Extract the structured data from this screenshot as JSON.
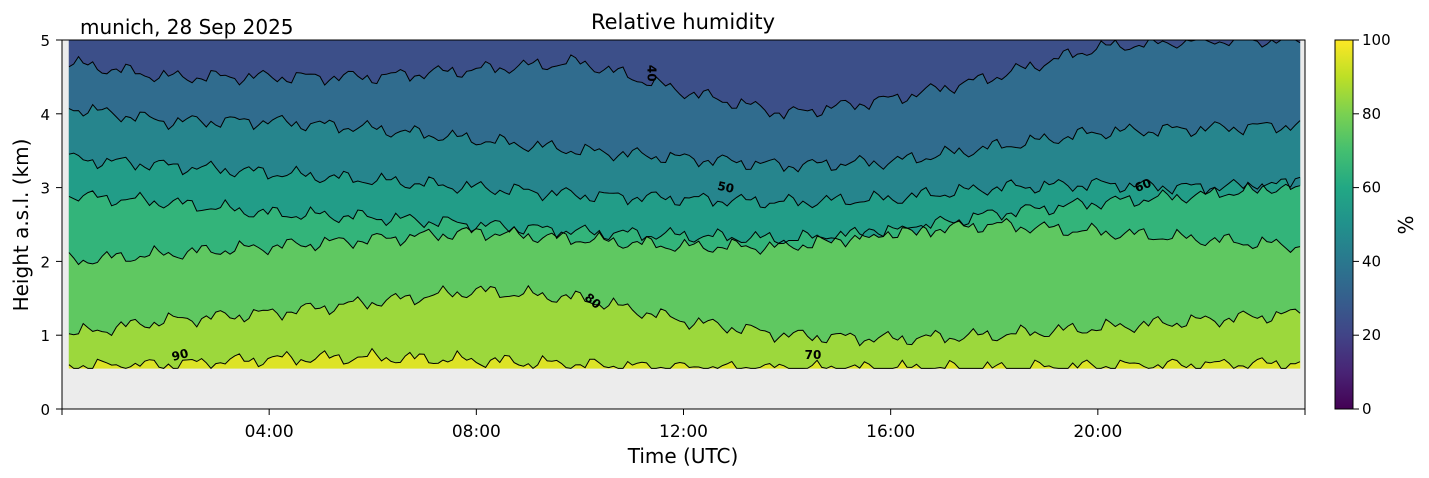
{
  "chart_data": {
    "type": "heatmap",
    "title": "Relative humidity",
    "location_label": "munich, 28 Sep 2025",
    "xlabel": "Time (UTC)",
    "ylabel": "Height a.s.l. (km)",
    "xlim_hours": [
      0,
      24
    ],
    "ylim_km": [
      0,
      5
    ],
    "x_ticks": [
      {
        "hour": 4,
        "label": "04:00"
      },
      {
        "hour": 8,
        "label": "08:00"
      },
      {
        "hour": 12,
        "label": "12:00"
      },
      {
        "hour": 16,
        "label": "16:00"
      },
      {
        "hour": 20,
        "label": "20:00"
      }
    ],
    "y_ticks": [
      {
        "value": 0,
        "label": "0"
      },
      {
        "value": 1,
        "label": "1"
      },
      {
        "value": 2,
        "label": "2"
      },
      {
        "value": 3,
        "label": "3"
      },
      {
        "value": 4,
        "label": "4"
      },
      {
        "value": 5,
        "label": "5"
      }
    ],
    "data_floor_km": 0.55,
    "colormap": "viridis",
    "colorbar": {
      "label": "%",
      "range": [
        0,
        100
      ],
      "ticks": [
        {
          "value": 0,
          "label": "0"
        },
        {
          "value": 20,
          "label": "20"
        },
        {
          "value": 40,
          "label": "40"
        },
        {
          "value": 60,
          "label": "60"
        },
        {
          "value": 80,
          "label": "80"
        },
        {
          "value": 100,
          "label": "100"
        }
      ]
    },
    "contour_levels": [
      30,
      40,
      50,
      60,
      70,
      80,
      90
    ],
    "contour_labels": [
      {
        "text": "90",
        "hour": 2.3,
        "km": 0.68,
        "rotate": -15
      },
      {
        "text": "80",
        "hour": 10.2,
        "km": 1.42,
        "rotate": 38
      },
      {
        "text": "70",
        "hour": 14.5,
        "km": 0.68,
        "rotate": 0
      },
      {
        "text": "50",
        "hour": 12.8,
        "km": 2.95,
        "rotate": 12
      },
      {
        "text": "60",
        "hour": 20.9,
        "km": 2.98,
        "rotate": -22
      },
      {
        "text": "40",
        "hour": 11.3,
        "km": 4.55,
        "rotate": 90
      }
    ],
    "hours": [
      0,
      2,
      4,
      6,
      8,
      10,
      12,
      14,
      16,
      18,
      20,
      22,
      24
    ],
    "isoline_heights_km": {
      "90": [
        0.58,
        0.6,
        0.68,
        0.7,
        0.66,
        0.6,
        0.56,
        0.55,
        0.55,
        0.55,
        0.58,
        0.6,
        0.62
      ],
      "80": [
        1.0,
        1.2,
        1.3,
        1.45,
        1.6,
        1.5,
        1.2,
        1.0,
        0.95,
        1.0,
        1.1,
        1.2,
        1.3
      ],
      "70": [
        2.0,
        2.1,
        2.2,
        2.3,
        2.4,
        2.3,
        2.2,
        2.2,
        2.4,
        2.5,
        2.4,
        2.3,
        2.2
      ],
      "60": [
        2.9,
        2.8,
        2.65,
        2.6,
        2.5,
        2.4,
        2.35,
        2.3,
        2.4,
        2.65,
        2.8,
        2.9,
        3.05
      ],
      "50": [
        3.4,
        3.3,
        3.2,
        3.1,
        3.0,
        2.9,
        2.85,
        2.8,
        2.85,
        3.0,
        3.05,
        3.0,
        3.05
      ],
      "40": [
        4.1,
        3.9,
        3.9,
        3.8,
        3.65,
        3.5,
        3.4,
        3.3,
        3.35,
        3.55,
        3.75,
        3.8,
        3.85
      ],
      "30": [
        4.7,
        4.5,
        4.5,
        4.5,
        4.6,
        4.7,
        4.3,
        4.0,
        4.2,
        4.5,
        4.9,
        5.0,
        5.0
      ]
    }
  }
}
